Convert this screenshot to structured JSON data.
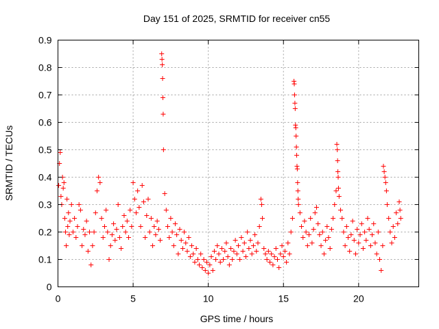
{
  "chart_data": {
    "type": "scatter",
    "title": "Day 151 of 2025, SRMTID for receiver cn55",
    "xlabel": "GPS time / hours",
    "ylabel": "SRMTID / TECUs",
    "xlim": [
      0,
      24
    ],
    "ylim": [
      0,
      0.9
    ],
    "xticks": [
      0,
      5,
      10,
      15,
      20
    ],
    "xtick_labels": [
      "0",
      "5",
      "10",
      "15",
      "20"
    ],
    "yticks": [
      0,
      0.1,
      0.2,
      0.3,
      0.4,
      0.5,
      0.6,
      0.7,
      0.8,
      0.9
    ],
    "ytick_labels": [
      "0",
      "0.1",
      "0.2",
      "0.3",
      "0.4",
      "0.5",
      "0.6",
      "0.7",
      "0.8",
      "0.9"
    ],
    "grid": true,
    "marker": "+",
    "color": "#ff0000",
    "series": [
      {
        "name": "SRMTID",
        "points": [
          [
            0.05,
            0.37
          ],
          [
            0.1,
            0.45
          ],
          [
            0.15,
            0.49
          ],
          [
            0.2,
            0.33
          ],
          [
            0.25,
            0.3
          ],
          [
            0.3,
            0.4
          ],
          [
            0.35,
            0.36
          ],
          [
            0.4,
            0.38
          ],
          [
            0.45,
            0.25
          ],
          [
            0.5,
            0.2
          ],
          [
            0.55,
            0.15
          ],
          [
            0.6,
            0.32
          ],
          [
            0.65,
            0.22
          ],
          [
            0.7,
            0.27
          ],
          [
            0.75,
            0.19
          ],
          [
            0.8,
            0.24
          ],
          [
            0.9,
            0.3
          ],
          [
            1.0,
            0.2
          ],
          [
            1.1,
            0.25
          ],
          [
            1.2,
            0.18
          ],
          [
            1.3,
            0.22
          ],
          [
            1.4,
            0.3
          ],
          [
            1.5,
            0.28
          ],
          [
            1.6,
            0.15
          ],
          [
            1.7,
            0.21
          ],
          [
            1.8,
            0.19
          ],
          [
            1.9,
            0.24
          ],
          [
            2.0,
            0.13
          ],
          [
            2.1,
            0.2
          ],
          [
            2.2,
            0.08
          ],
          [
            2.3,
            0.15
          ],
          [
            2.4,
            0.2
          ],
          [
            2.5,
            0.27
          ],
          [
            2.6,
            0.35
          ],
          [
            2.7,
            0.4
          ],
          [
            2.8,
            0.38
          ],
          [
            2.9,
            0.25
          ],
          [
            3.0,
            0.18
          ],
          [
            3.1,
            0.22
          ],
          [
            3.2,
            0.28
          ],
          [
            3.3,
            0.2
          ],
          [
            3.4,
            0.1
          ],
          [
            3.5,
            0.15
          ],
          [
            3.6,
            0.19
          ],
          [
            3.7,
            0.23
          ],
          [
            3.8,
            0.17
          ],
          [
            3.9,
            0.21
          ],
          [
            4.0,
            0.3
          ],
          [
            4.1,
            0.18
          ],
          [
            4.2,
            0.14
          ],
          [
            4.3,
            0.22
          ],
          [
            4.4,
            0.26
          ],
          [
            4.5,
            0.2
          ],
          [
            4.6,
            0.24
          ],
          [
            4.7,
            0.18
          ],
          [
            4.8,
            0.28
          ],
          [
            4.9,
            0.22
          ],
          [
            5.0,
            0.38
          ],
          [
            5.1,
            0.32
          ],
          [
            5.2,
            0.27
          ],
          [
            5.3,
            0.35
          ],
          [
            5.4,
            0.29
          ],
          [
            5.5,
            0.22
          ],
          [
            5.6,
            0.37
          ],
          [
            5.7,
            0.31
          ],
          [
            5.8,
            0.18
          ],
          [
            5.9,
            0.26
          ],
          [
            6.0,
            0.32
          ],
          [
            6.1,
            0.2
          ],
          [
            6.2,
            0.25
          ],
          [
            6.3,
            0.15
          ],
          [
            6.4,
            0.22
          ],
          [
            6.5,
            0.19
          ],
          [
            6.6,
            0.24
          ],
          [
            6.7,
            0.21
          ],
          [
            6.8,
            0.17
          ],
          [
            6.9,
            0.85
          ],
          [
            6.92,
            0.83
          ],
          [
            6.94,
            0.81
          ],
          [
            6.96,
            0.76
          ],
          [
            6.98,
            0.69
          ],
          [
            7.0,
            0.63
          ],
          [
            7.02,
            0.5
          ],
          [
            7.1,
            0.34
          ],
          [
            7.2,
            0.28
          ],
          [
            7.3,
            0.22
          ],
          [
            7.4,
            0.18
          ],
          [
            7.5,
            0.25
          ],
          [
            7.6,
            0.2
          ],
          [
            7.7,
            0.15
          ],
          [
            7.8,
            0.23
          ],
          [
            7.9,
            0.19
          ],
          [
            8.0,
            0.12
          ],
          [
            8.1,
            0.21
          ],
          [
            8.2,
            0.17
          ],
          [
            8.3,
            0.14
          ],
          [
            8.4,
            0.2
          ],
          [
            8.5,
            0.16
          ],
          [
            8.6,
            0.13
          ],
          [
            8.7,
            0.18
          ],
          [
            8.8,
            0.11
          ],
          [
            8.9,
            0.15
          ],
          [
            9.0,
            0.12
          ],
          [
            9.1,
            0.09
          ],
          [
            9.2,
            0.14
          ],
          [
            9.3,
            0.1
          ],
          [
            9.4,
            0.08
          ],
          [
            9.5,
            0.12
          ],
          [
            9.6,
            0.07
          ],
          [
            9.7,
            0.1
          ],
          [
            9.8,
            0.06
          ],
          [
            9.9,
            0.09
          ],
          [
            10.0,
            0.05
          ],
          [
            10.1,
            0.08
          ],
          [
            10.2,
            0.11
          ],
          [
            10.3,
            0.06
          ],
          [
            10.4,
            0.13
          ],
          [
            10.5,
            0.1
          ],
          [
            10.6,
            0.15
          ],
          [
            10.7,
            0.12
          ],
          [
            10.8,
            0.09
          ],
          [
            10.9,
            0.14
          ],
          [
            11.0,
            0.1
          ],
          [
            11.1,
            0.13
          ],
          [
            11.2,
            0.16
          ],
          [
            11.3,
            0.11
          ],
          [
            11.4,
            0.08
          ],
          [
            11.5,
            0.14
          ],
          [
            11.6,
            0.1
          ],
          [
            11.7,
            0.13
          ],
          [
            11.8,
            0.17
          ],
          [
            11.9,
            0.12
          ],
          [
            12.0,
            0.15
          ],
          [
            12.1,
            0.1
          ],
          [
            12.2,
            0.18
          ],
          [
            12.3,
            0.13
          ],
          [
            12.4,
            0.16
          ],
          [
            12.5,
            0.11
          ],
          [
            12.6,
            0.2
          ],
          [
            12.7,
            0.14
          ],
          [
            12.8,
            0.17
          ],
          [
            12.9,
            0.12
          ],
          [
            13.0,
            0.15
          ],
          [
            13.1,
            0.19
          ],
          [
            13.2,
            0.13
          ],
          [
            13.3,
            0.16
          ],
          [
            13.4,
            0.22
          ],
          [
            13.5,
            0.32
          ],
          [
            13.55,
            0.3
          ],
          [
            13.6,
            0.25
          ],
          [
            13.7,
            0.14
          ],
          [
            13.8,
            0.12
          ],
          [
            13.9,
            0.1
          ],
          [
            14.0,
            0.13
          ],
          [
            14.1,
            0.09
          ],
          [
            14.2,
            0.12
          ],
          [
            14.3,
            0.08
          ],
          [
            14.4,
            0.11
          ],
          [
            14.5,
            0.14
          ],
          [
            14.6,
            0.1
          ],
          [
            14.7,
            0.07
          ],
          [
            14.8,
            0.12
          ],
          [
            14.9,
            0.15
          ],
          [
            15.0,
            0.11
          ],
          [
            15.1,
            0.13
          ],
          [
            15.2,
            0.09
          ],
          [
            15.3,
            0.16
          ],
          [
            15.4,
            0.12
          ],
          [
            15.5,
            0.2
          ],
          [
            15.6,
            0.25
          ],
          [
            15.7,
            0.75
          ],
          [
            15.72,
            0.74
          ],
          [
            15.74,
            0.7
          ],
          [
            15.76,
            0.67
          ],
          [
            15.78,
            0.65
          ],
          [
            15.8,
            0.59
          ],
          [
            15.82,
            0.58
          ],
          [
            15.84,
            0.55
          ],
          [
            15.86,
            0.51
          ],
          [
            15.88,
            0.48
          ],
          [
            15.9,
            0.44
          ],
          [
            15.92,
            0.43
          ],
          [
            15.94,
            0.38
          ],
          [
            15.96,
            0.35
          ],
          [
            15.98,
            0.32
          ],
          [
            16.0,
            0.3
          ],
          [
            16.1,
            0.27
          ],
          [
            16.2,
            0.22
          ],
          [
            16.3,
            0.18
          ],
          [
            16.4,
            0.24
          ],
          [
            16.5,
            0.2
          ],
          [
            16.6,
            0.15
          ],
          [
            16.7,
            0.19
          ],
          [
            16.8,
            0.25
          ],
          [
            16.9,
            0.16
          ],
          [
            17.0,
            0.21
          ],
          [
            17.1,
            0.27
          ],
          [
            17.2,
            0.29
          ],
          [
            17.3,
            0.23
          ],
          [
            17.4,
            0.19
          ],
          [
            17.5,
            0.15
          ],
          [
            17.6,
            0.2
          ],
          [
            17.7,
            0.12
          ],
          [
            17.8,
            0.17
          ],
          [
            17.9,
            0.22
          ],
          [
            18.0,
            0.18
          ],
          [
            18.1,
            0.14
          ],
          [
            18.2,
            0.21
          ],
          [
            18.3,
            0.25
          ],
          [
            18.4,
            0.3
          ],
          [
            18.5,
            0.35
          ],
          [
            18.55,
            0.52
          ],
          [
            18.58,
            0.5
          ],
          [
            18.6,
            0.46
          ],
          [
            18.62,
            0.42
          ],
          [
            18.64,
            0.4
          ],
          [
            18.66,
            0.36
          ],
          [
            18.7,
            0.33
          ],
          [
            18.8,
            0.28
          ],
          [
            18.9,
            0.25
          ],
          [
            19.0,
            0.2
          ],
          [
            19.1,
            0.15
          ],
          [
            19.2,
            0.22
          ],
          [
            19.3,
            0.18
          ],
          [
            19.4,
            0.13
          ],
          [
            19.5,
            0.19
          ],
          [
            19.6,
            0.24
          ],
          [
            19.7,
            0.17
          ],
          [
            19.8,
            0.12
          ],
          [
            19.9,
            0.21
          ],
          [
            20.0,
            0.16
          ],
          [
            20.1,
            0.19
          ],
          [
            20.2,
            0.23
          ],
          [
            20.3,
            0.14
          ],
          [
            20.4,
            0.2
          ],
          [
            20.5,
            0.17
          ],
          [
            20.6,
            0.25
          ],
          [
            20.7,
            0.21
          ],
          [
            20.8,
            0.15
          ],
          [
            20.9,
            0.19
          ],
          [
            21.0,
            0.23
          ],
          [
            21.1,
            0.16
          ],
          [
            21.2,
            0.12
          ],
          [
            21.3,
            0.2
          ],
          [
            21.4,
            0.1
          ],
          [
            21.5,
            0.06
          ],
          [
            21.6,
            0.15
          ],
          [
            21.65,
            0.44
          ],
          [
            21.7,
            0.42
          ],
          [
            21.75,
            0.4
          ],
          [
            21.8,
            0.38
          ],
          [
            21.85,
            0.35
          ],
          [
            21.9,
            0.3
          ],
          [
            22.0,
            0.25
          ],
          [
            22.1,
            0.2
          ],
          [
            22.2,
            0.16
          ],
          [
            22.3,
            0.22
          ],
          [
            22.4,
            0.18
          ],
          [
            22.5,
            0.27
          ],
          [
            22.6,
            0.23
          ],
          [
            22.7,
            0.31
          ],
          [
            22.75,
            0.28
          ],
          [
            22.8,
            0.25
          ]
        ]
      }
    ]
  }
}
